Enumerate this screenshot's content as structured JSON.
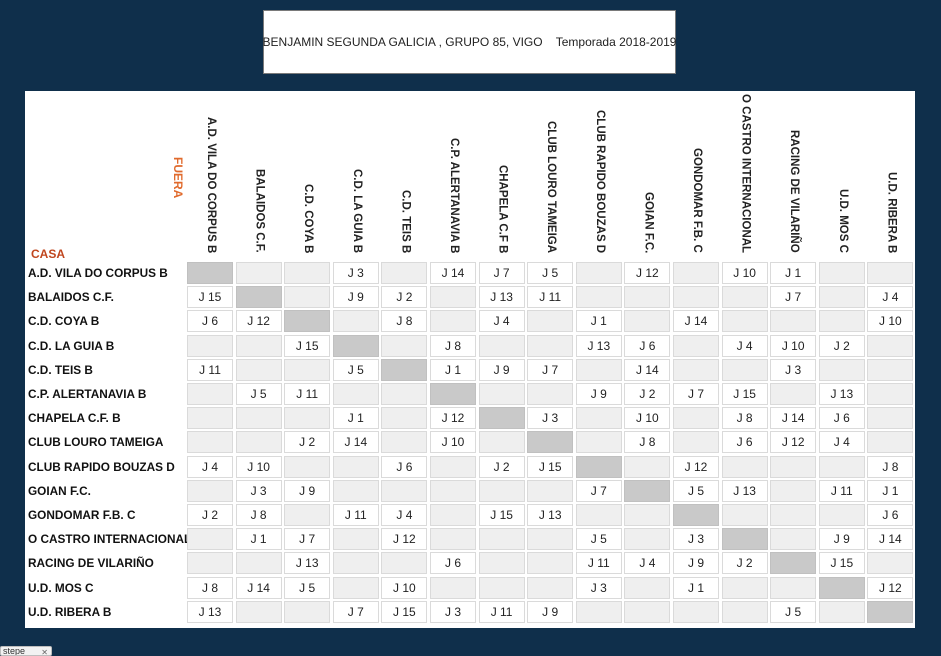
{
  "title": "BENJAMIN SEGUNDA GALICIA , GRUPO 85, VIGO    Temporada 2018-2019",
  "labels": {
    "fuera": "FUERA",
    "casa": "CASA"
  },
  "teams": [
    "A.D. VILA DO CORPUS B",
    "BALAIDOS C.F.",
    "C.D. COYA B",
    "C.D. LA GUIA B",
    "C.D. TEIS B",
    "C.P. ALERTANAVIA B",
    "CHAPELA C.F. B",
    "CLUB LOURO TAMEIGA",
    "CLUB RAPIDO BOUZAS D",
    "GOIAN F.C.",
    "GONDOMAR F.B. C",
    "O CASTRO INTERNACIONAL",
    "RACING DE VILARIÑO",
    "U.D. MOS C",
    "U.D. RIBERA B"
  ],
  "columns": [
    "A.D. VILA DO CORPUS B",
    "BALAIDOS C.F.",
    "C.D. COYA B",
    "C.D. LA GUIA B",
    "C.D. TEIS B",
    "C.P. ALERTANAVIA B",
    "CHAPELA C.F B",
    "CLUB LOURO TAMEIGA",
    "CLUB RAPIDO BOUZAS D",
    "GOIAN F.C.",
    "GONDOMAR F.B. C",
    "O CASTRO INTERNACIONAL",
    "RACING DE VILARIÑO",
    "U.D. MOS C",
    "U.D. RIBERA B"
  ],
  "matrix": [
    [
      "",
      "",
      "",
      "J 3",
      "",
      "J 14",
      "J 7",
      "J 5",
      "",
      "J 12",
      "",
      "J 10",
      "J 1",
      "",
      ""
    ],
    [
      "J 15",
      "",
      "",
      "J 9",
      "J 2",
      "",
      "J 13",
      "J 11",
      "",
      "",
      "",
      "",
      "J 7",
      "",
      "J 4"
    ],
    [
      "J 6",
      "J 12",
      "",
      "",
      "J 8",
      "",
      "J 4",
      "",
      "J 1",
      "",
      "J 14",
      "",
      "",
      "",
      "J 10"
    ],
    [
      "",
      "",
      "J 15",
      "",
      "",
      "J 8",
      "",
      "",
      "J 13",
      "J 6",
      "",
      "J 4",
      "J 10",
      "J 2",
      ""
    ],
    [
      "J 11",
      "",
      "",
      "J 5",
      "",
      "J 1",
      "J 9",
      "J 7",
      "",
      "J 14",
      "",
      "",
      "J 3",
      "",
      ""
    ],
    [
      "",
      "J 5",
      "J 11",
      "",
      "",
      "",
      "",
      "",
      "J 9",
      "J 2",
      "J 7",
      "J 15",
      "",
      "J 13",
      ""
    ],
    [
      "",
      "",
      "",
      "J 1",
      "",
      "J 12",
      "",
      "J 3",
      "",
      "J 10",
      "",
      "J 8",
      "J 14",
      "J 6",
      ""
    ],
    [
      "",
      "",
      "J 2",
      "J 14",
      "",
      "J 10",
      "",
      "",
      "",
      "J 8",
      "",
      "J 6",
      "J 12",
      "J 4",
      ""
    ],
    [
      "J 4",
      "J 10",
      "",
      "",
      "J 6",
      "",
      "J 2",
      "J 15",
      "",
      "",
      "J 12",
      "",
      "",
      "",
      "J 8"
    ],
    [
      "",
      "J 3",
      "J 9",
      "",
      "",
      "",
      "",
      "",
      "J 7",
      "",
      "J 5",
      "J 13",
      "",
      "J 11",
      "J 1"
    ],
    [
      "J 2",
      "J 8",
      "",
      "J 11",
      "J 4",
      "",
      "J 15",
      "J 13",
      "",
      "",
      "",
      "",
      "",
      "",
      "J 6"
    ],
    [
      "",
      "J 1",
      "J 7",
      "",
      "J 12",
      "",
      "",
      "",
      "J 5",
      "",
      "J 3",
      "",
      "",
      "J 9",
      "J 14"
    ],
    [
      "",
      "",
      "J 13",
      "",
      "",
      "J 6",
      "",
      "",
      "J 11",
      "J 4",
      "J 9",
      "J 2",
      "",
      "J 15",
      ""
    ],
    [
      "J 8",
      "J 14",
      "J 5",
      "",
      "J 10",
      "",
      "",
      "",
      "J 3",
      "",
      "J 1",
      "",
      "",
      "",
      "J 12"
    ],
    [
      "J 13",
      "",
      "",
      "J 7",
      "J 15",
      "J 3",
      "J 11",
      "J 9",
      "",
      "",
      "",
      "",
      "J 5",
      "",
      ""
    ]
  ],
  "bottom_tab": {
    "label": "stepe",
    "close_icon": "close-icon"
  },
  "colors": {
    "background": "#0f2f4b",
    "fuera": "#e06a2c",
    "casa": "#c0461e",
    "diagonal": "#c9c9c9",
    "empty_cell": "#efefef"
  }
}
